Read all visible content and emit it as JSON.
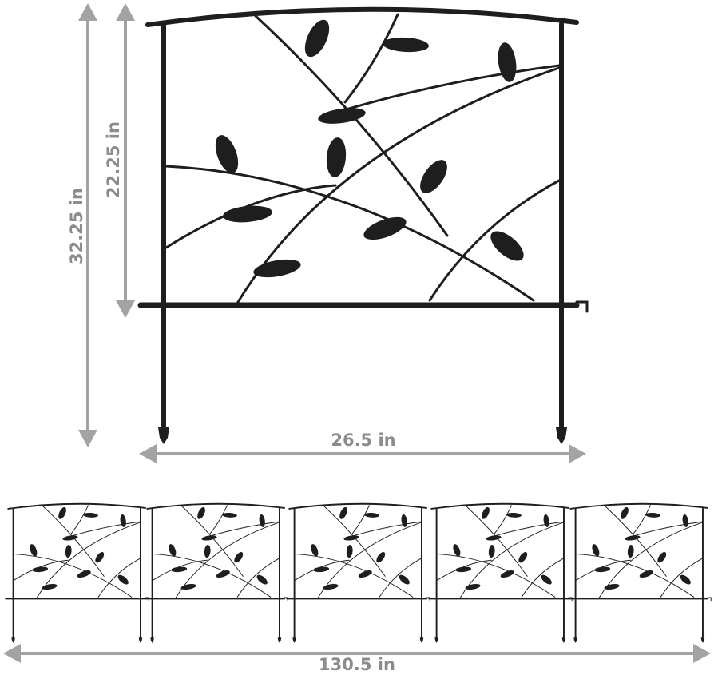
{
  "dimensions": {
    "total_height": "32.25 in",
    "panel_height": "22.25 in",
    "panel_width": "26.5 in",
    "total_width": "130.5 in"
  }
}
